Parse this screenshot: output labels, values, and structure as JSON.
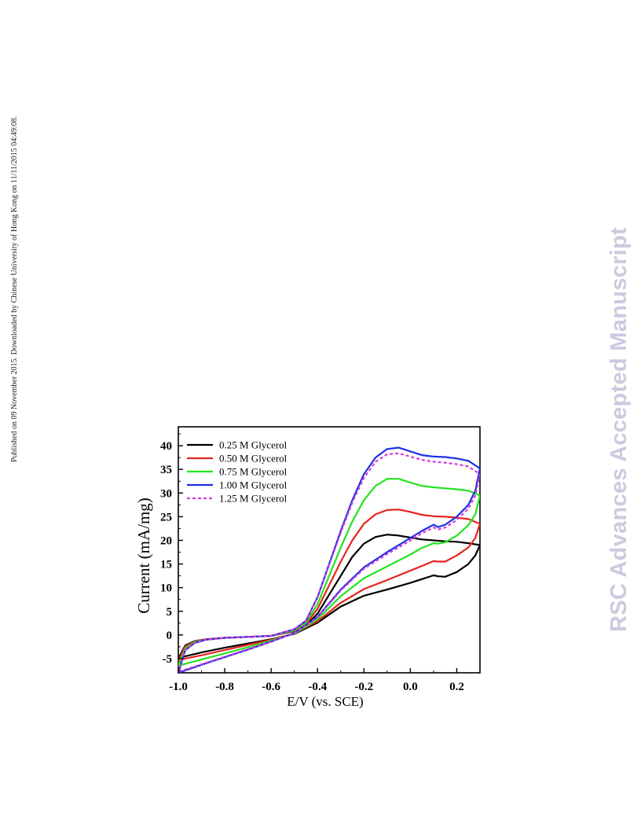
{
  "page": {
    "side_note": "Published on 09 November 2015. Downloaded by Chinese University of Hong Kong on 11/11/2015 04:49:08.",
    "watermark": "RSC Advances Accepted Manuscript"
  },
  "chart_data": {
    "type": "line",
    "title": "",
    "xlabel": "E/V (vs. SCE)",
    "ylabel": "Current (mA/mg)",
    "xlim": [
      -1.0,
      0.3
    ],
    "ylim": [
      -8,
      44
    ],
    "xticks": [
      -1.0,
      -0.8,
      -0.6,
      -0.4,
      -0.2,
      0.0,
      0.2
    ],
    "xtick_labels": [
      "-1.0",
      "-0.8",
      "-0.6",
      "-0.4",
      "-0.2",
      "0.0",
      "0.2"
    ],
    "yticks": [
      -5,
      0,
      5,
      10,
      15,
      20,
      25,
      30,
      35,
      40
    ],
    "ytick_labels": [
      "-5",
      "0",
      "5",
      "10",
      "15",
      "20",
      "25",
      "30",
      "35",
      "40"
    ],
    "grid": false,
    "legend_position": "top-left",
    "series": [
      {
        "name": "0.25 M Glycerol",
        "color": "#000000",
        "dashed": false,
        "points": [
          [
            -1.0,
            -5.0
          ],
          [
            -0.97,
            -2.2
          ],
          [
            -0.93,
            -1.3
          ],
          [
            -0.88,
            -0.9
          ],
          [
            -0.8,
            -0.6
          ],
          [
            -0.7,
            -0.4
          ],
          [
            -0.6,
            -0.2
          ],
          [
            -0.5,
            0.8
          ],
          [
            -0.45,
            2.0
          ],
          [
            -0.4,
            4.5
          ],
          [
            -0.35,
            8.5
          ],
          [
            -0.3,
            12.5
          ],
          [
            -0.25,
            16.5
          ],
          [
            -0.2,
            19.3
          ],
          [
            -0.15,
            20.7
          ],
          [
            -0.1,
            21.2
          ],
          [
            -0.05,
            21.0
          ],
          [
            0.0,
            20.6
          ],
          [
            0.05,
            20.2
          ],
          [
            0.1,
            20.0
          ],
          [
            0.15,
            19.8
          ],
          [
            0.2,
            19.7
          ],
          [
            0.25,
            19.4
          ],
          [
            0.3,
            19.0
          ],
          [
            0.28,
            16.8
          ],
          [
            0.25,
            15.0
          ],
          [
            0.2,
            13.3
          ],
          [
            0.15,
            12.3
          ],
          [
            0.12,
            12.4
          ],
          [
            0.1,
            12.6
          ],
          [
            0.05,
            11.8
          ],
          [
            0.0,
            11.0
          ],
          [
            -0.1,
            9.6
          ],
          [
            -0.2,
            8.3
          ],
          [
            -0.3,
            6.0
          ],
          [
            -0.4,
            2.6
          ],
          [
            -0.5,
            0.2
          ],
          [
            -0.6,
            -0.9
          ],
          [
            -0.7,
            -1.8
          ],
          [
            -0.8,
            -2.7
          ],
          [
            -0.9,
            -3.7
          ],
          [
            -0.97,
            -4.5
          ],
          [
            -1.0,
            -5.0
          ]
        ]
      },
      {
        "name": "0.50 M Glycerol",
        "color": "#e8231f",
        "dashed": false,
        "points": [
          [
            -1.0,
            -5.5
          ],
          [
            -0.97,
            -2.4
          ],
          [
            -0.93,
            -1.4
          ],
          [
            -0.88,
            -0.9
          ],
          [
            -0.8,
            -0.6
          ],
          [
            -0.7,
            -0.4
          ],
          [
            -0.6,
            -0.2
          ],
          [
            -0.5,
            0.9
          ],
          [
            -0.45,
            2.3
          ],
          [
            -0.4,
            5.5
          ],
          [
            -0.35,
            10.5
          ],
          [
            -0.3,
            15.5
          ],
          [
            -0.25,
            20.0
          ],
          [
            -0.2,
            23.5
          ],
          [
            -0.15,
            25.5
          ],
          [
            -0.1,
            26.4
          ],
          [
            -0.05,
            26.5
          ],
          [
            0.0,
            26.0
          ],
          [
            0.05,
            25.4
          ],
          [
            0.1,
            25.1
          ],
          [
            0.15,
            25.0
          ],
          [
            0.2,
            24.8
          ],
          [
            0.25,
            24.5
          ],
          [
            0.3,
            23.5
          ],
          [
            0.28,
            20.5
          ],
          [
            0.25,
            18.5
          ],
          [
            0.2,
            16.8
          ],
          [
            0.15,
            15.5
          ],
          [
            0.12,
            15.5
          ],
          [
            0.1,
            15.6
          ],
          [
            0.05,
            14.6
          ],
          [
            0.0,
            13.6
          ],
          [
            -0.1,
            11.6
          ],
          [
            -0.2,
            9.7
          ],
          [
            -0.3,
            6.8
          ],
          [
            -0.4,
            2.9
          ],
          [
            -0.5,
            0.3
          ],
          [
            -0.6,
            -1.0
          ],
          [
            -0.7,
            -2.1
          ],
          [
            -0.8,
            -3.2
          ],
          [
            -0.9,
            -4.3
          ],
          [
            -0.97,
            -5.0
          ],
          [
            -1.0,
            -5.5
          ]
        ]
      },
      {
        "name": "0.75 M Glycerol",
        "color": "#22e41e",
        "dashed": false,
        "points": [
          [
            -1.0,
            -6.5
          ],
          [
            -0.97,
            -2.8
          ],
          [
            -0.93,
            -1.5
          ],
          [
            -0.88,
            -1.0
          ],
          [
            -0.8,
            -0.6
          ],
          [
            -0.7,
            -0.4
          ],
          [
            -0.6,
            -0.2
          ],
          [
            -0.5,
            1.0
          ],
          [
            -0.45,
            2.6
          ],
          [
            -0.4,
            6.5
          ],
          [
            -0.35,
            12.5
          ],
          [
            -0.3,
            18.5
          ],
          [
            -0.25,
            24.0
          ],
          [
            -0.2,
            28.5
          ],
          [
            -0.15,
            31.5
          ],
          [
            -0.1,
            33.0
          ],
          [
            -0.05,
            33.0
          ],
          [
            0.0,
            32.2
          ],
          [
            0.05,
            31.5
          ],
          [
            0.1,
            31.2
          ],
          [
            0.15,
            31.0
          ],
          [
            0.2,
            30.8
          ],
          [
            0.25,
            30.5
          ],
          [
            0.3,
            29.5
          ],
          [
            0.28,
            25.5
          ],
          [
            0.25,
            23.2
          ],
          [
            0.2,
            21.0
          ],
          [
            0.15,
            19.6
          ],
          [
            0.12,
            19.3
          ],
          [
            0.1,
            19.4
          ],
          [
            0.05,
            18.4
          ],
          [
            0.0,
            17.0
          ],
          [
            -0.1,
            14.5
          ],
          [
            -0.2,
            12.0
          ],
          [
            -0.3,
            8.2
          ],
          [
            -0.4,
            3.3
          ],
          [
            -0.5,
            0.3
          ],
          [
            -0.6,
            -1.2
          ],
          [
            -0.7,
            -2.6
          ],
          [
            -0.8,
            -3.9
          ],
          [
            -0.9,
            -5.2
          ],
          [
            -0.97,
            -6.1
          ],
          [
            -1.0,
            -6.5
          ]
        ]
      },
      {
        "name": "1.00 M Glycerol",
        "color": "#1f2fe6",
        "dashed": false,
        "points": [
          [
            -1.0,
            -8.0
          ],
          [
            -0.97,
            -3.2
          ],
          [
            -0.93,
            -1.7
          ],
          [
            -0.88,
            -1.0
          ],
          [
            -0.8,
            -0.6
          ],
          [
            -0.7,
            -0.4
          ],
          [
            -0.6,
            -0.2
          ],
          [
            -0.5,
            1.2
          ],
          [
            -0.45,
            3.0
          ],
          [
            -0.4,
            8.0
          ],
          [
            -0.35,
            15.0
          ],
          [
            -0.3,
            22.0
          ],
          [
            -0.25,
            28.5
          ],
          [
            -0.2,
            34.0
          ],
          [
            -0.15,
            37.5
          ],
          [
            -0.1,
            39.3
          ],
          [
            -0.05,
            39.6
          ],
          [
            0.0,
            38.8
          ],
          [
            0.05,
            38.0
          ],
          [
            0.1,
            37.7
          ],
          [
            0.15,
            37.6
          ],
          [
            0.2,
            37.3
          ],
          [
            0.25,
            36.8
          ],
          [
            0.3,
            35.2
          ],
          [
            0.28,
            30.5
          ],
          [
            0.25,
            27.5
          ],
          [
            0.2,
            25.0
          ],
          [
            0.15,
            23.3
          ],
          [
            0.12,
            22.8
          ],
          [
            0.1,
            23.3
          ],
          [
            0.05,
            22.0
          ],
          [
            0.0,
            20.5
          ],
          [
            -0.1,
            17.5
          ],
          [
            -0.2,
            14.3
          ],
          [
            -0.3,
            9.6
          ],
          [
            -0.4,
            3.8
          ],
          [
            -0.5,
            0.4
          ],
          [
            -0.6,
            -1.4
          ],
          [
            -0.7,
            -3.1
          ],
          [
            -0.8,
            -4.7
          ],
          [
            -0.9,
            -6.3
          ],
          [
            -0.97,
            -7.5
          ],
          [
            -1.0,
            -8.0
          ]
        ]
      },
      {
        "name": "1.25 M Glycerol",
        "color": "#d63ad6",
        "dashed": true,
        "points": [
          [
            -1.0,
            -7.8
          ],
          [
            -0.97,
            -3.1
          ],
          [
            -0.93,
            -1.7
          ],
          [
            -0.88,
            -1.0
          ],
          [
            -0.8,
            -0.6
          ],
          [
            -0.7,
            -0.4
          ],
          [
            -0.6,
            -0.2
          ],
          [
            -0.5,
            1.2
          ],
          [
            -0.45,
            3.0
          ],
          [
            -0.4,
            7.9
          ],
          [
            -0.35,
            14.8
          ],
          [
            -0.3,
            21.6
          ],
          [
            -0.25,
            28.0
          ],
          [
            -0.2,
            33.2
          ],
          [
            -0.15,
            36.6
          ],
          [
            -0.1,
            38.2
          ],
          [
            -0.05,
            38.4
          ],
          [
            0.0,
            37.7
          ],
          [
            0.05,
            37.0
          ],
          [
            0.1,
            36.6
          ],
          [
            0.15,
            36.4
          ],
          [
            0.2,
            36.1
          ],
          [
            0.25,
            35.6
          ],
          [
            0.3,
            34.0
          ],
          [
            0.28,
            29.5
          ],
          [
            0.25,
            26.7
          ],
          [
            0.2,
            24.3
          ],
          [
            0.15,
            22.7
          ],
          [
            0.12,
            22.3
          ],
          [
            0.1,
            22.7
          ],
          [
            0.05,
            21.5
          ],
          [
            0.0,
            20.0
          ],
          [
            -0.1,
            17.1
          ],
          [
            -0.2,
            14.0
          ],
          [
            -0.3,
            9.4
          ],
          [
            -0.4,
            3.7
          ],
          [
            -0.5,
            0.4
          ],
          [
            -0.6,
            -1.4
          ],
          [
            -0.7,
            -3.0
          ],
          [
            -0.8,
            -4.6
          ],
          [
            -0.9,
            -6.2
          ],
          [
            -0.97,
            -7.3
          ],
          [
            -1.0,
            -7.8
          ]
        ]
      }
    ]
  }
}
